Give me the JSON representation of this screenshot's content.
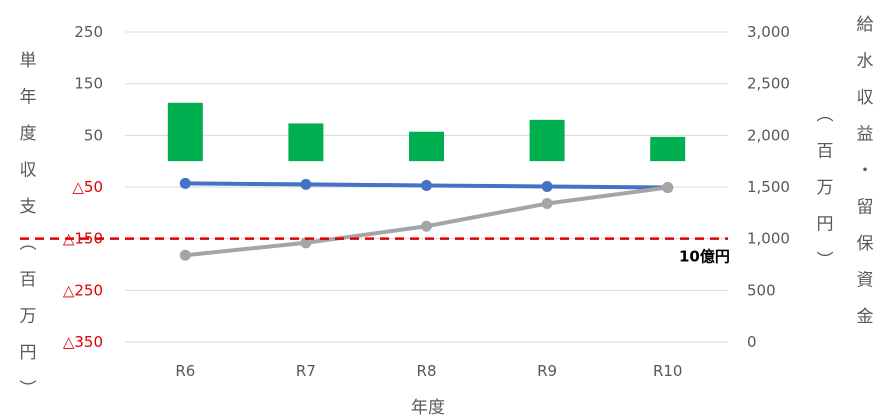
{
  "chart_data": {
    "type": "bar+line",
    "categories": [
      "R6",
      "R7",
      "R8",
      "R9",
      "R10"
    ],
    "xlabel": "年度",
    "ylabel_left": "単年度収支（百万円）",
    "ylabel_right": "給水収益・留保資金（百万円）",
    "left_axis": {
      "min": -350,
      "max": 250,
      "step": 100,
      "ticks": [
        250,
        150,
        50,
        -50,
        -150,
        -250,
        -350
      ],
      "tick_labels": [
        "250",
        "150",
        "50",
        "△50",
        "△150",
        "△250",
        "△350"
      ]
    },
    "right_axis": {
      "min": 0,
      "max": 3000,
      "step": 500,
      "ticks": [
        0,
        500,
        1000,
        1500,
        2000,
        2500,
        3000
      ],
      "tick_labels": [
        "0",
        "500",
        "1,000",
        "1,500",
        "2,000",
        "2,500",
        "3,000"
      ]
    },
    "gridlines": true,
    "series": [
      {
        "axis": "left",
        "type": "bar",
        "color": "#00b050",
        "values": [
          113,
          73,
          57,
          80,
          47
        ]
      },
      {
        "axis": "right",
        "type": "line",
        "color": "#4472c4",
        "values": [
          1535,
          1525,
          1515,
          1505,
          1495
        ]
      },
      {
        "axis": "right",
        "type": "line",
        "color": "#a5a5a5",
        "values": [
          840,
          960,
          1120,
          1340,
          1495
        ]
      }
    ],
    "threshold": {
      "axis": "right",
      "value": 1000,
      "label": "10億円",
      "color": "#e00000",
      "style": "dashed"
    }
  }
}
